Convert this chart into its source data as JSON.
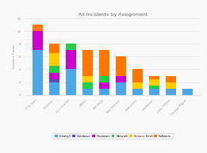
{
  "title": "All Incidents by Assignment",
  "categories": [
    "IT IL User",
    "Director",
    "Our Conflict",
    "HIPRO",
    "Net-Help",
    "Sub-Service",
    "End-users",
    "Hardware",
    "Low Others",
    "Change Mgmt"
  ],
  "series": {
    "Infraby1": [
      7,
      2,
      4,
      1,
      1,
      2,
      1,
      1,
      1,
      1
    ],
    "Database": [
      0,
      0.5,
      0,
      0,
      0,
      0,
      0,
      0,
      0,
      0
    ],
    "Hardware": [
      3,
      1,
      3,
      0,
      1,
      1,
      0,
      0,
      0,
      0
    ],
    "Network": [
      0,
      1,
      1,
      1,
      1,
      0,
      0,
      0.5,
      0,
      0
    ],
    "Service Desk": [
      0,
      2,
      0,
      1,
      0,
      0,
      1,
      1,
      1,
      0
    ],
    "Software": [
      1,
      1.5,
      0,
      4,
      4,
      3,
      2,
      0.5,
      1,
      0
    ]
  },
  "colors": {
    "Infraby1": "#4da6e8",
    "Database": "#5b4db5",
    "Hardware": "#cc00cc",
    "Network": "#22cc44",
    "Service Desk": "#ffcc00",
    "Software": "#ff7700"
  },
  "ylabel": "Incident Count",
  "ylim": [
    0,
    12
  ],
  "yticks": [
    0,
    2,
    4,
    6,
    8,
    10,
    12
  ],
  "bg_color": "#f8f8f8",
  "grid_color": "#e5e5e5",
  "title_color": "#666666",
  "tick_color": "#999999"
}
